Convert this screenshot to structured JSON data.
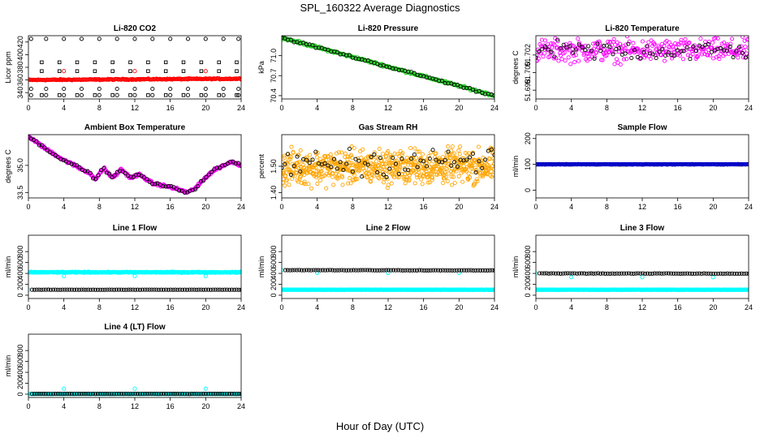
{
  "page": {
    "title": "SPL_160322  Average Diagnostics",
    "x_axis_title": "Hour of Day (UTC)"
  },
  "colors": {
    "black": "#000000",
    "red": "#ff0000",
    "green": "#22cc22",
    "magenta": "#ff00ff",
    "orange": "#ffa500",
    "cyan": "#00ffff",
    "blue": "#0000cc"
  },
  "chart_data": [
    {
      "id": "co2",
      "type": "scatter",
      "title": "Li-820 CO2",
      "ylabel": "Licor ppm",
      "xlim": [
        0,
        24
      ],
      "ylim": [
        330,
        430
      ],
      "xticks": [
        0,
        4,
        8,
        12,
        16,
        20,
        24
      ],
      "yticks": [
        340,
        360,
        380,
        400,
        420
      ],
      "ytick_labels": [
        "340",
        "360",
        "380",
        "400",
        "420"
      ],
      "series": [
        {
          "color": "#000000",
          "marker": "circle",
          "generator": "levels",
          "x": [
            0.3,
            2,
            4,
            6,
            8,
            10,
            12,
            14,
            16,
            18,
            20,
            22,
            23.7
          ],
          "levels": [
            425,
            346,
            336
          ]
        },
        {
          "color": "#000000",
          "marker": "square",
          "generator": "levels",
          "x": [
            1.5,
            3.5,
            5.5,
            7.5,
            9.5,
            11.5,
            13.5,
            15.5,
            17.5,
            19.5,
            21.5,
            23.5
          ],
          "levels": [
            388,
            374,
            336
          ]
        },
        {
          "color": "#ff0000",
          "marker": "circle",
          "generator": "dense",
          "x0": 0,
          "x1": 24,
          "n": 260,
          "y0": 360,
          "y1": 362,
          "noise": 0.6
        },
        {
          "color": "#ff0000",
          "marker": "circle",
          "generator": "points",
          "x": [
            4,
            12,
            20
          ],
          "y": [
            374,
            374,
            374
          ]
        }
      ]
    },
    {
      "id": "pressure",
      "type": "scatter",
      "title": "Li-820 Pressure",
      "ylabel": "kPa",
      "xlim": [
        0,
        24
      ],
      "ylim": [
        70.35,
        71.3
      ],
      "xticks": [
        0,
        4,
        8,
        12,
        16,
        20,
        24
      ],
      "yticks": [
        70.4,
        70.7,
        71.0
      ],
      "ytick_labels": [
        "70.4",
        "70.7",
        "71.0"
      ],
      "series": [
        {
          "color": "#22cc22",
          "marker": "circle",
          "generator": "dense",
          "x0": 0,
          "x1": 24,
          "n": 260,
          "y0": 71.27,
          "y1": 70.4,
          "noise": 0.012
        },
        {
          "color": "#000000",
          "marker": "circle",
          "generator": "dense",
          "x0": 0,
          "x1": 24,
          "n": 70,
          "y0": 71.27,
          "y1": 70.4,
          "noise": 0.012
        }
      ]
    },
    {
      "id": "temperature",
      "type": "scatter",
      "title": "Li-820 Temperature",
      "ylabel": "degrees C",
      "xlim": [
        0,
        24
      ],
      "ylim": [
        51.697,
        51.7042
      ],
      "xticks": [
        0,
        4,
        8,
        12,
        16,
        20,
        24
      ],
      "yticks": [
        51.698,
        51.7,
        51.702
      ],
      "ytick_labels": [
        "51.698",
        "51.700",
        "51.702"
      ],
      "series": [
        {
          "color": "#ff00ff",
          "marker": "circle",
          "generator": "dense",
          "x0": 0,
          "x1": 24,
          "n": 320,
          "y0": 51.7025,
          "y1": 51.7025,
          "noise": 0.0009
        },
        {
          "color": "#000000",
          "marker": "circle",
          "generator": "dense",
          "x0": 0,
          "x1": 24,
          "n": 70,
          "y0": 51.7025,
          "y1": 51.7025,
          "noise": 0.0008
        }
      ]
    },
    {
      "id": "ambient",
      "type": "scatter",
      "title": "Ambient Box Temperature",
      "ylabel": "degrees C",
      "xlim": [
        0,
        24
      ],
      "ylim": [
        33.2,
        36.7
      ],
      "xticks": [
        0,
        4,
        8,
        12,
        16,
        20,
        24
      ],
      "yticks": [
        33.5,
        35.0
      ],
      "ytick_labels": [
        "33.5",
        "35.0"
      ],
      "series": [
        {
          "color": "#ff00ff",
          "marker": "circle",
          "generator": "curve",
          "n": 300,
          "noise": 0.05,
          "knots": [
            [
              0,
              36.6
            ],
            [
              2,
              35.9
            ],
            [
              4,
              35.3
            ],
            [
              6,
              34.8
            ],
            [
              7,
              34.55
            ],
            [
              7.5,
              34.2
            ],
            [
              8.5,
              34.85
            ],
            [
              9.5,
              34.3
            ],
            [
              10.5,
              34.8
            ],
            [
              11.5,
              34.3
            ],
            [
              12.5,
              34.5
            ],
            [
              14,
              34.0
            ],
            [
              16,
              33.8
            ],
            [
              17,
              33.65
            ],
            [
              18,
              33.5
            ],
            [
              19,
              33.8
            ],
            [
              20,
              34.35
            ],
            [
              21,
              34.75
            ],
            [
              22,
              35.0
            ],
            [
              23,
              35.2
            ],
            [
              24,
              35.0
            ]
          ]
        },
        {
          "color": "#000000",
          "marker": "circle",
          "generator": "curve",
          "n": 80,
          "noise": 0.05,
          "knots": [
            [
              0,
              36.6
            ],
            [
              2,
              35.9
            ],
            [
              4,
              35.3
            ],
            [
              6,
              34.8
            ],
            [
              7,
              34.55
            ],
            [
              7.5,
              34.2
            ],
            [
              8.5,
              34.85
            ],
            [
              9.5,
              34.3
            ],
            [
              10.5,
              34.8
            ],
            [
              11.5,
              34.3
            ],
            [
              12.5,
              34.5
            ],
            [
              14,
              34.0
            ],
            [
              16,
              33.8
            ],
            [
              17,
              33.65
            ],
            [
              18,
              33.5
            ],
            [
              19,
              33.8
            ],
            [
              20,
              34.35
            ],
            [
              21,
              34.75
            ],
            [
              22,
              35.0
            ],
            [
              23,
              35.2
            ],
            [
              24,
              35.0
            ]
          ]
        }
      ]
    },
    {
      "id": "rh",
      "type": "scatter",
      "title": "Gas Stream RH",
      "ylabel": "percent",
      "xlim": [
        0,
        24
      ],
      "ylim": [
        1.38,
        1.62
      ],
      "xticks": [
        0,
        4,
        8,
        12,
        16,
        20,
        24
      ],
      "yticks": [
        1.4,
        1.5
      ],
      "ytick_labels": [
        "1.40",
        "1.50"
      ],
      "series": [
        {
          "color": "#ffa500",
          "marker": "circle",
          "generator": "dense",
          "x0": 0,
          "x1": 24,
          "n": 700,
          "y0": 1.495,
          "y1": 1.5,
          "noise": 0.045
        },
        {
          "color": "#000000",
          "marker": "circle",
          "generator": "dense",
          "x0": 0,
          "x1": 24,
          "n": 70,
          "y0": 1.51,
          "y1": 1.52,
          "noise": 0.035
        }
      ]
    },
    {
      "id": "sample",
      "type": "scatter",
      "title": "Sample Flow",
      "ylabel": "ml/min",
      "xlim": [
        0,
        24
      ],
      "ylim": [
        -30,
        215
      ],
      "xticks": [
        0,
        4,
        8,
        12,
        16,
        20,
        24
      ],
      "yticks": [
        0,
        100,
        200
      ],
      "ytick_labels": [
        "0",
        "100",
        "200"
      ],
      "series": [
        {
          "color": "#000000",
          "marker": "circle",
          "generator": "dense",
          "x0": 0,
          "x1": 24,
          "n": 140,
          "y0": 100,
          "y1": 100,
          "noise": 0.6
        },
        {
          "color": "#0000cc",
          "marker": "circle",
          "generator": "dense",
          "x0": 0,
          "x1": 24,
          "n": 220,
          "y0": 100,
          "y1": 100,
          "noise": 0.6
        }
      ]
    },
    {
      "id": "line1",
      "type": "scatter",
      "title": "Line 1 Flow",
      "ylabel": "ml/min",
      "xlim": [
        0,
        24
      ],
      "ylim": [
        -60,
        1100
      ],
      "xticks": [
        0,
        4,
        8,
        12,
        16,
        20,
        24
      ],
      "yticks": [
        0,
        200,
        400,
        600,
        800
      ],
      "ytick_labels": [
        "0",
        "200",
        "400",
        "600",
        "800"
      ],
      "series": [
        {
          "color": "#00ffff",
          "marker": "circle",
          "generator": "dense",
          "x0": 0,
          "x1": 24,
          "n": 380,
          "y0": 420,
          "y1": 420,
          "noise": 6
        },
        {
          "color": "#00ffff",
          "marker": "circle",
          "generator": "points",
          "x": [
            4,
            12,
            20
          ],
          "y": [
            350,
            350,
            350
          ]
        },
        {
          "color": "#00ffff",
          "marker": "circle",
          "generator": "points",
          "x": [
            0
          ],
          "y": [
            100
          ]
        },
        {
          "color": "#000000",
          "marker": "circle",
          "generator": "dense",
          "x0": 0.4,
          "x1": 24,
          "n": 90,
          "y0": 100,
          "y1": 100,
          "noise": 1
        }
      ]
    },
    {
      "id": "line2",
      "type": "scatter",
      "title": "Line 2 Flow",
      "ylabel": "ml/min",
      "xlim": [
        0,
        24
      ],
      "ylim": [
        -60,
        1100
      ],
      "xticks": [
        0,
        4,
        8,
        12,
        16,
        20,
        24
      ],
      "yticks": [
        0,
        200,
        400,
        600,
        800
      ],
      "ytick_labels": [
        "0",
        "200",
        "400",
        "600",
        "800"
      ],
      "series": [
        {
          "color": "#00ffff",
          "marker": "circle",
          "generator": "dense",
          "x0": 0,
          "x1": 24,
          "n": 380,
          "y0": 100,
          "y1": 100,
          "noise": 2
        },
        {
          "color": "#00ffff",
          "marker": "circle",
          "generator": "points",
          "x": [
            0,
            4,
            12,
            20
          ],
          "y": [
            460,
            410,
            410,
            410
          ]
        },
        {
          "color": "#000000",
          "marker": "circle",
          "generator": "dense",
          "x0": 0.4,
          "x1": 24,
          "n": 90,
          "y0": 460,
          "y1": 455,
          "noise": 2
        }
      ]
    },
    {
      "id": "line3",
      "type": "scatter",
      "title": "Line 3 Flow",
      "ylabel": "ml/min",
      "xlim": [
        0,
        24
      ],
      "ylim": [
        -60,
        1100
      ],
      "xticks": [
        0,
        4,
        8,
        12,
        16,
        20,
        24
      ],
      "yticks": [
        0,
        200,
        400,
        600,
        800
      ],
      "ytick_labels": [
        "0",
        "200",
        "400",
        "600",
        "800"
      ],
      "series": [
        {
          "color": "#00ffff",
          "marker": "circle",
          "generator": "dense",
          "x0": 0,
          "x1": 24,
          "n": 380,
          "y0": 100,
          "y1": 100,
          "noise": 2
        },
        {
          "color": "#00ffff",
          "marker": "circle",
          "generator": "points",
          "x": [
            0,
            4,
            12,
            20
          ],
          "y": [
            400,
            330,
            330,
            330
          ]
        },
        {
          "color": "#000000",
          "marker": "circle",
          "generator": "dense",
          "x0": 0.4,
          "x1": 24,
          "n": 90,
          "y0": 400,
          "y1": 395,
          "noise": 3
        }
      ]
    },
    {
      "id": "line4",
      "type": "scatter",
      "title": "Line 4 (LT) Flow",
      "ylabel": "ml/min",
      "xlim": [
        0,
        24
      ],
      "ylim": [
        -60,
        1100
      ],
      "xticks": [
        0,
        4,
        8,
        12,
        16,
        20,
        24
      ],
      "yticks": [
        0,
        200,
        400,
        600,
        800
      ],
      "ytick_labels": [
        "0",
        "200",
        "400",
        "600",
        "800"
      ],
      "series": [
        {
          "color": "#00ffff",
          "marker": "circle",
          "generator": "dense",
          "x0": 0,
          "x1": 24,
          "n": 380,
          "y0": 5,
          "y1": 5,
          "noise": 1
        },
        {
          "color": "#00ffff",
          "marker": "circle",
          "generator": "points",
          "x": [
            4,
            12,
            20
          ],
          "y": [
            100,
            100,
            100
          ]
        },
        {
          "color": "#000000",
          "marker": "circle",
          "generator": "dense",
          "x0": 0.4,
          "x1": 24,
          "n": 90,
          "y0": 5,
          "y1": 5,
          "noise": 1
        }
      ]
    }
  ]
}
